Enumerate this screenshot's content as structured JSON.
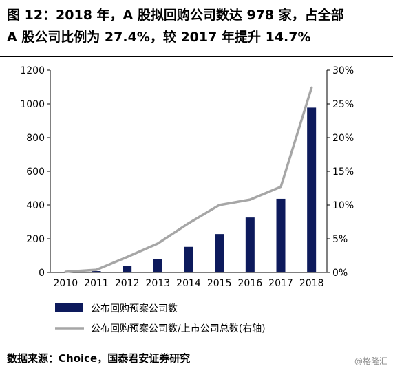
{
  "figure": {
    "title_line1": "图 12：2018 年，A 股拟回购公司数达 978 家，占全部",
    "title_line2": "A 股公司比例为 27.4%，较 2017 年提升 14.7%",
    "source": "数据来源：Choice，国泰君安证券研究",
    "watermark": "@格隆汇"
  },
  "chart_data": {
    "type": "bar",
    "categories": [
      "2010",
      "2011",
      "2012",
      "2013",
      "2014",
      "2015",
      "2016",
      "2017",
      "2018"
    ],
    "y_ticks": [
      "0",
      "200",
      "400",
      "600",
      "800",
      "1000",
      "1200"
    ],
    "y2_ticks": [
      "0%",
      "5%",
      "10%",
      "15%",
      "20%",
      "25%",
      "30%"
    ],
    "ylim": [
      0,
      1200
    ],
    "y2lim": [
      0,
      30
    ],
    "grid": false,
    "legend_position": "bottom",
    "series": [
      {
        "name": "公布回购预案公司数",
        "type": "bar",
        "axis": "left",
        "color": "#0d1a5c",
        "values": [
          2,
          8,
          38,
          78,
          152,
          228,
          326,
          437,
          978
        ]
      },
      {
        "name": "公布回购预案公司数/上市公司总数(右轴)",
        "type": "line",
        "axis": "right",
        "color": "#a6a6a6",
        "values": [
          0.1,
          0.4,
          2.3,
          4.3,
          7.3,
          10.0,
          10.8,
          12.7,
          27.4
        ]
      }
    ]
  }
}
